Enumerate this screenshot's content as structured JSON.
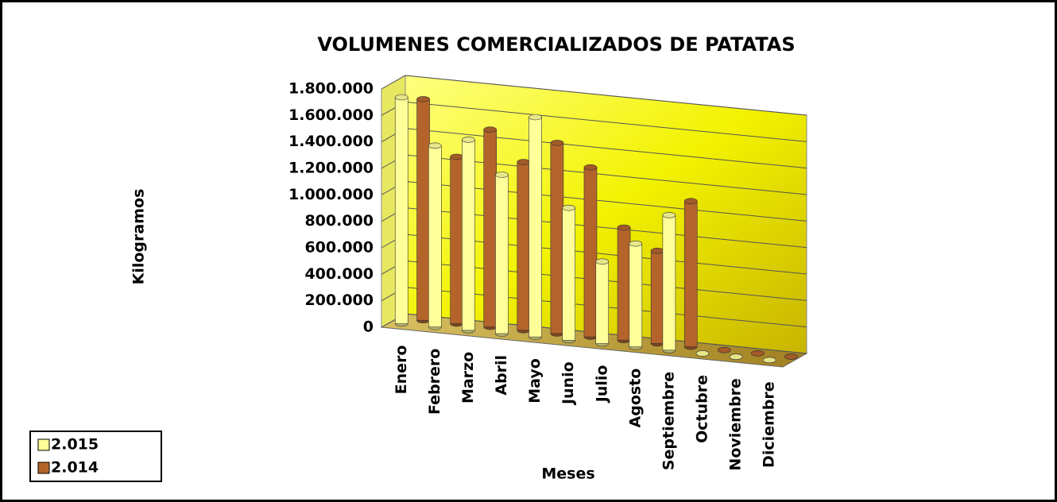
{
  "chart_data": {
    "type": "bar3d",
    "title": "VOLUMENES COMERCIALIZADOS DE PATATAS",
    "x_label": "Meses",
    "y_label": "Kilogramos",
    "categories": [
      "Enero",
      "Febrero",
      "Marzo",
      "Abril",
      "Mayo",
      "Junio",
      "Julio",
      "Agosto",
      "Septiembre",
      "Octubre",
      "Noviembre",
      "Diciembre"
    ],
    "series": [
      {
        "name": "2.015",
        "color": "#ffff99",
        "values": [
          1710000,
          1370000,
          1440000,
          1200000,
          1660000,
          1000000,
          620000,
          780000,
          1020000,
          0,
          0,
          0
        ]
      },
      {
        "name": "2.014",
        "color": "#b4642a",
        "values": [
          1670000,
          1260000,
          1490000,
          1270000,
          1440000,
          1280000,
          850000,
          700000,
          1100000,
          0,
          0,
          0
        ]
      }
    ],
    "ylim": [
      0,
      1800000
    ],
    "yticks": [
      0,
      {
        "value": 200000,
        "label": "200.000"
      },
      {
        "value": 400000,
        "label": "400.000"
      },
      {
        "value": 600000,
        "label": "600.000"
      },
      {
        "value": 800000,
        "label": "800.000"
      },
      {
        "value": 1000000,
        "label": "1.000.000"
      },
      {
        "value": 1200000,
        "label": "1.200.000"
      },
      {
        "value": 1400000,
        "label": "1.400.000"
      },
      {
        "value": 1600000,
        "label": "1.600.000"
      },
      {
        "value": 1800000,
        "label": "1.800.000"
      }
    ],
    "grid": true,
    "legend": "bottom-left"
  }
}
